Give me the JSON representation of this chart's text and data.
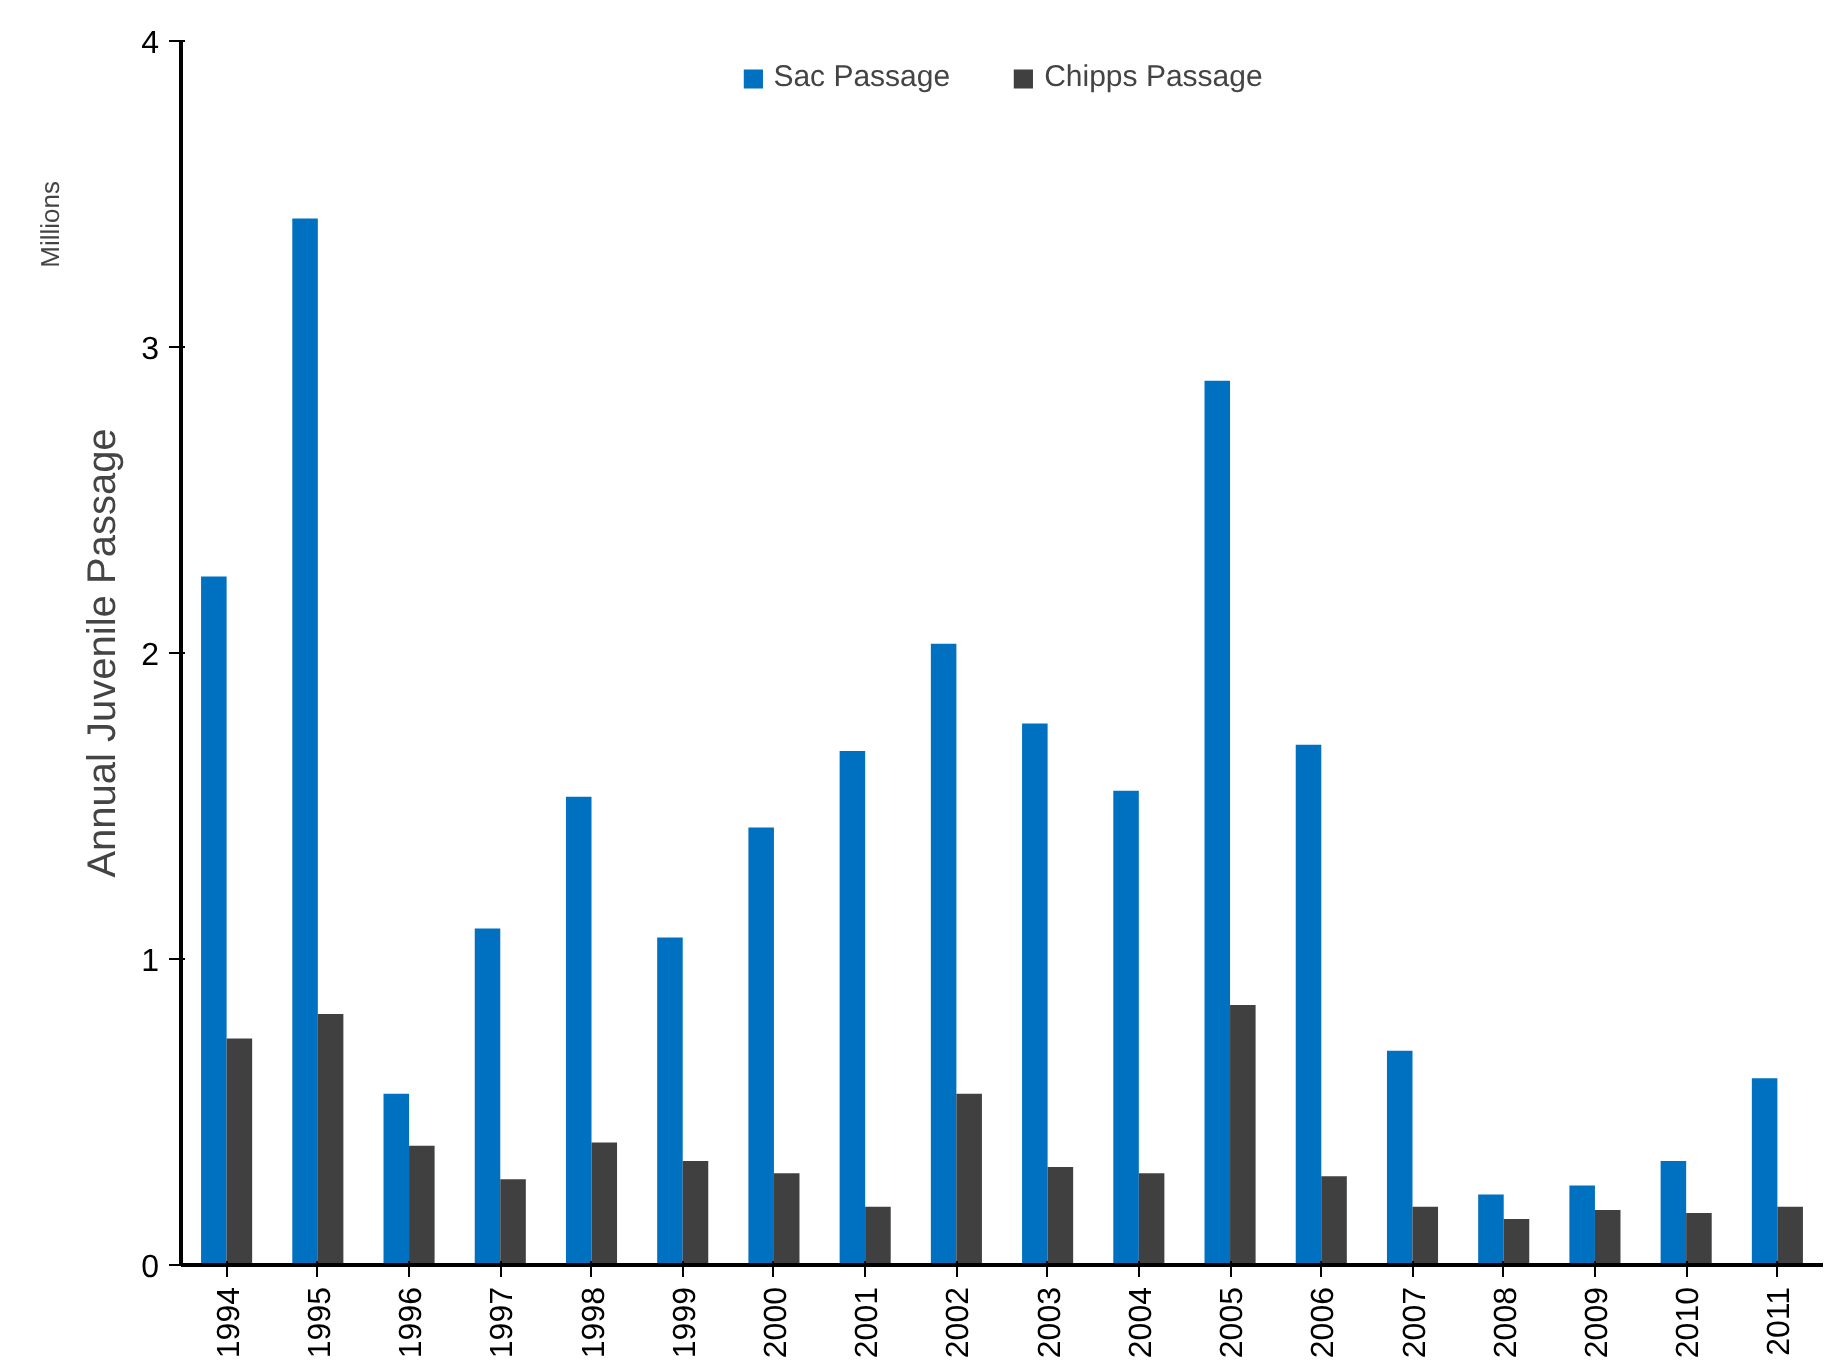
{
  "chart_data": {
    "type": "bar",
    "ylabel": "Annual Juvenile Passage",
    "annotations": [
      "Millions"
    ],
    "categories": [
      "1994",
      "1995",
      "1996",
      "1997",
      "1998",
      "1999",
      "2000",
      "2001",
      "2002",
      "2003",
      "2004",
      "2005",
      "2006",
      "2007",
      "2008",
      "2009",
      "2010",
      "2011"
    ],
    "series": [
      {
        "name": "Sac Passage",
        "color": "#0070c0",
        "values": [
          2.25,
          3.42,
          0.56,
          1.1,
          1.53,
          1.07,
          1.43,
          1.68,
          2.03,
          1.77,
          1.55,
          2.89,
          1.7,
          0.7,
          0.23,
          0.26,
          0.34,
          0.61
        ]
      },
      {
        "name": "Chipps Passage",
        "color": "#404040",
        "values": [
          0.74,
          0.82,
          0.39,
          0.28,
          0.4,
          0.34,
          0.3,
          0.19,
          0.56,
          0.32,
          0.3,
          0.85,
          0.29,
          0.19,
          0.15,
          0.18,
          0.17,
          0.19
        ]
      }
    ],
    "ylim": [
      0,
      4
    ],
    "yticks": [
      0,
      1,
      2,
      3,
      4
    ],
    "grid": false,
    "legend": "top"
  }
}
